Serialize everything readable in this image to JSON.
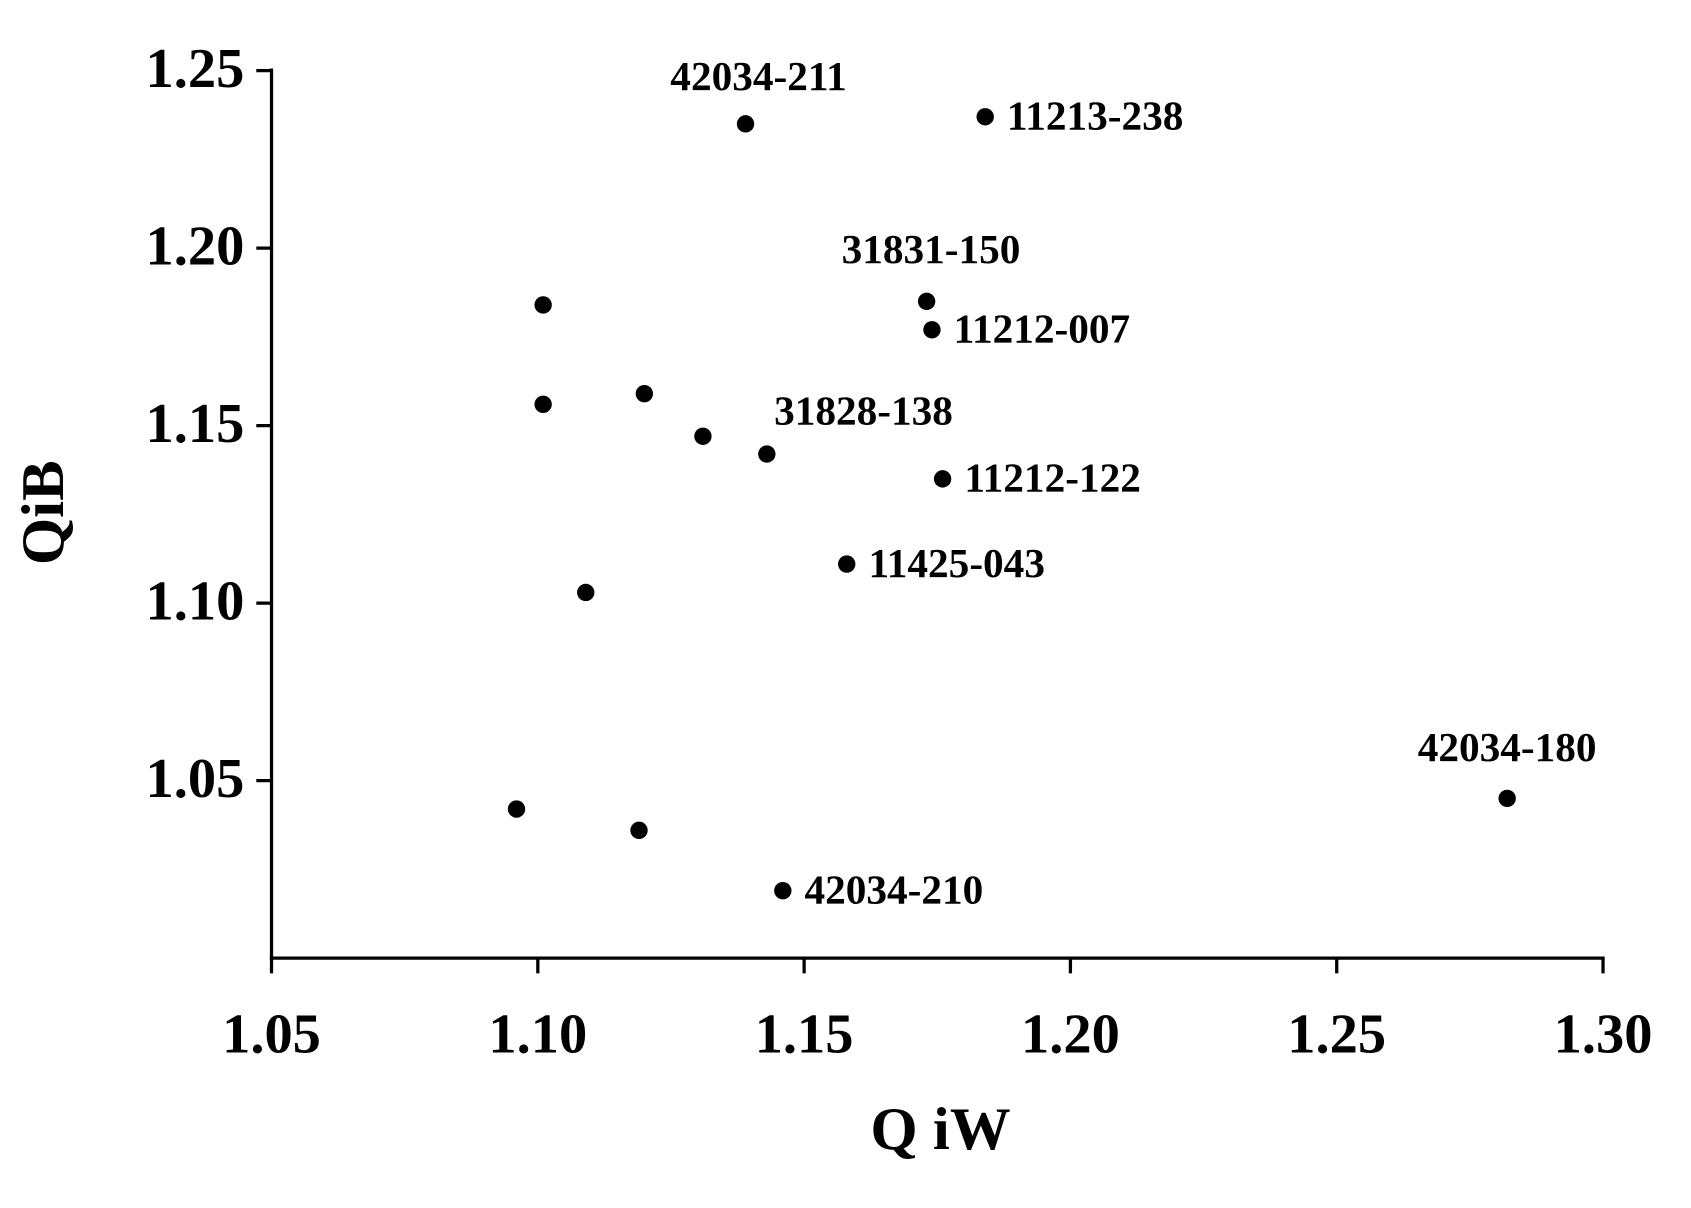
{
  "chart_data": {
    "type": "scatter",
    "x_label": "Q iW",
    "y_label": "QiB",
    "xlim": [
      1.05,
      1.3
    ],
    "ylim": [
      1.0,
      1.25
    ],
    "xticks": [
      1.05,
      {
        "value": 1.1,
        "label": "1.10"
      },
      1.15,
      {
        "value": 1.2,
        "label": "1.20"
      },
      1.25,
      {
        "value": 1.3,
        "label": "1.30"
      }
    ],
    "yticks": [
      1.05,
      {
        "value": 1.1,
        "label": "1.10"
      },
      1.15,
      {
        "value": 1.2,
        "label": "1.20"
      },
      1.25
    ],
    "color": "#000000",
    "x": [
      1.139,
      1.184,
      1.173,
      1.174,
      1.101,
      1.101,
      1.12,
      1.131,
      1.143,
      1.176,
      1.158,
      1.109,
      1.096,
      1.119,
      1.146,
      1.282
    ],
    "y": [
      1.235,
      1.237,
      1.185,
      1.177,
      1.184,
      1.156,
      1.159,
      1.147,
      1.142,
      1.135,
      1.111,
      1.103,
      1.042,
      1.036,
      1.019,
      1.045
    ],
    "labels": [
      "42034-211",
      "11213-238",
      "31831-150",
      "11212-007",
      null,
      null,
      null,
      null,
      "31828-138",
      "11212-122",
      "11425-043",
      null,
      null,
      null,
      "42034-210",
      "42034-180"
    ]
  }
}
